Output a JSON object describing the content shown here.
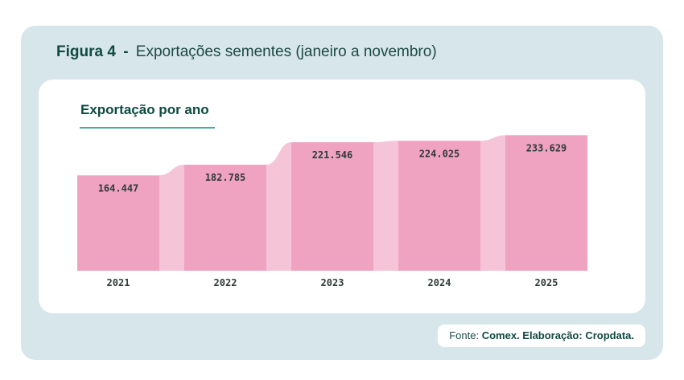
{
  "figure": {
    "label": "Figura 4",
    "separator": "-",
    "title": "Exportações sementes (janeiro a novembro)"
  },
  "chart_data": {
    "type": "bar",
    "title": "Exportação por ano",
    "categories": [
      "2021",
      "2022",
      "2023",
      "2024",
      "2025"
    ],
    "values": [
      164447,
      182785,
      221546,
      224025,
      233629
    ],
    "value_labels": [
      "164.447",
      "182.785",
      "221.546",
      "224.025",
      "233.629"
    ],
    "xlabel": "",
    "ylabel": "",
    "ylim": [
      0,
      250000
    ],
    "grid": false,
    "legend": "none"
  },
  "source": {
    "prefix": "Fonte:",
    "text": "Comex. Elaboração: Cropdata."
  },
  "colors": {
    "bar": "#efa3c1",
    "connector": "#f5c4d6",
    "title": "#0f4a41",
    "accent_line": "#4aa8a0",
    "panel": "#d7e6ea"
  }
}
